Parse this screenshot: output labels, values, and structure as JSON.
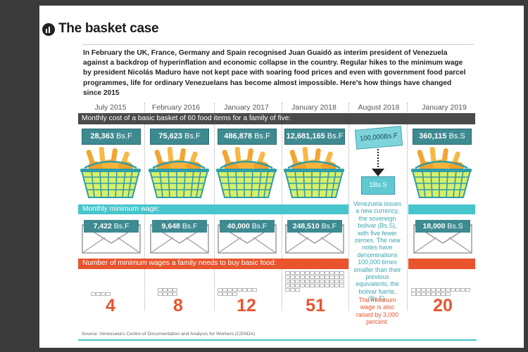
{
  "header": {
    "title": "The basket case",
    "intro": "In February the UK, France, Germany and Spain recognised Juan Guaidó as interim president of Venezuela against a backdrop of hyperinflation and economic collapse in the country. Regular hikes to the minimum wage by president Nicolás Maduro have not kept pace with soaring food prices and even with government food parcel programmes, life for ordinary Venezuelans has become almost impossible. Here's how things have changed since 2015"
  },
  "labels": {
    "cost_bar": "Monthly cost of a basic basket of 60 food items for a family of five:",
    "min_wage_bar": "Monthly minimum wage:",
    "num_wages_bar": "Number of minimum wages a family needs to buy basic food:"
  },
  "columns": [
    {
      "date": "July 2015",
      "cost": "28,363",
      "cost_unit": "Bs.F",
      "wage": "7,422",
      "wage_unit": "Bs.F",
      "wages_needed": 4
    },
    {
      "date": "February 2016",
      "cost": "75,623",
      "cost_unit": "Bs.F",
      "wage": "9,648",
      "wage_unit": "Bs.F",
      "wages_needed": 8
    },
    {
      "date": "January 2017",
      "cost": "486,878",
      "cost_unit": "Bs.F",
      "wage": "40,000",
      "wage_unit": "Bs.F",
      "wages_needed": 12
    },
    {
      "date": "January 2018",
      "cost": "12,681,165",
      "cost_unit": "Bs.F",
      "wage": "248,510",
      "wage_unit": "Bs.F",
      "wages_needed": 51
    },
    {
      "date": "January 2019",
      "cost": "360,115",
      "cost_unit": "Bs.S",
      "wage": "18,000",
      "wage_unit": "Bs.S",
      "wages_needed": 20
    }
  ],
  "august2018": {
    "date": "August 2018",
    "old_note": "100,000Bs.F",
    "new_note": "1Bs.S",
    "text": "Venezuela issues a new currency, the sovereign bolivar (Bs.S), with five fewer zeroes. The new notes have denominations 100,000 times smaller than their previous equivalents, the bolivar fuerte, (Bs.F).",
    "min_wage_text": "The minimum wage is also raised by 3,000 percent."
  },
  "source": "Source: Venezuela's Centre of Documentation and Analysis for Workers (CENDA)",
  "colors": {
    "dark_bar": "#4a4a4a",
    "teal": "#46c5cc",
    "price_teal": "#3e8a91",
    "orange": "#e8542c",
    "basket_green": "#2f9ea6",
    "bread": "#f2a531"
  }
}
